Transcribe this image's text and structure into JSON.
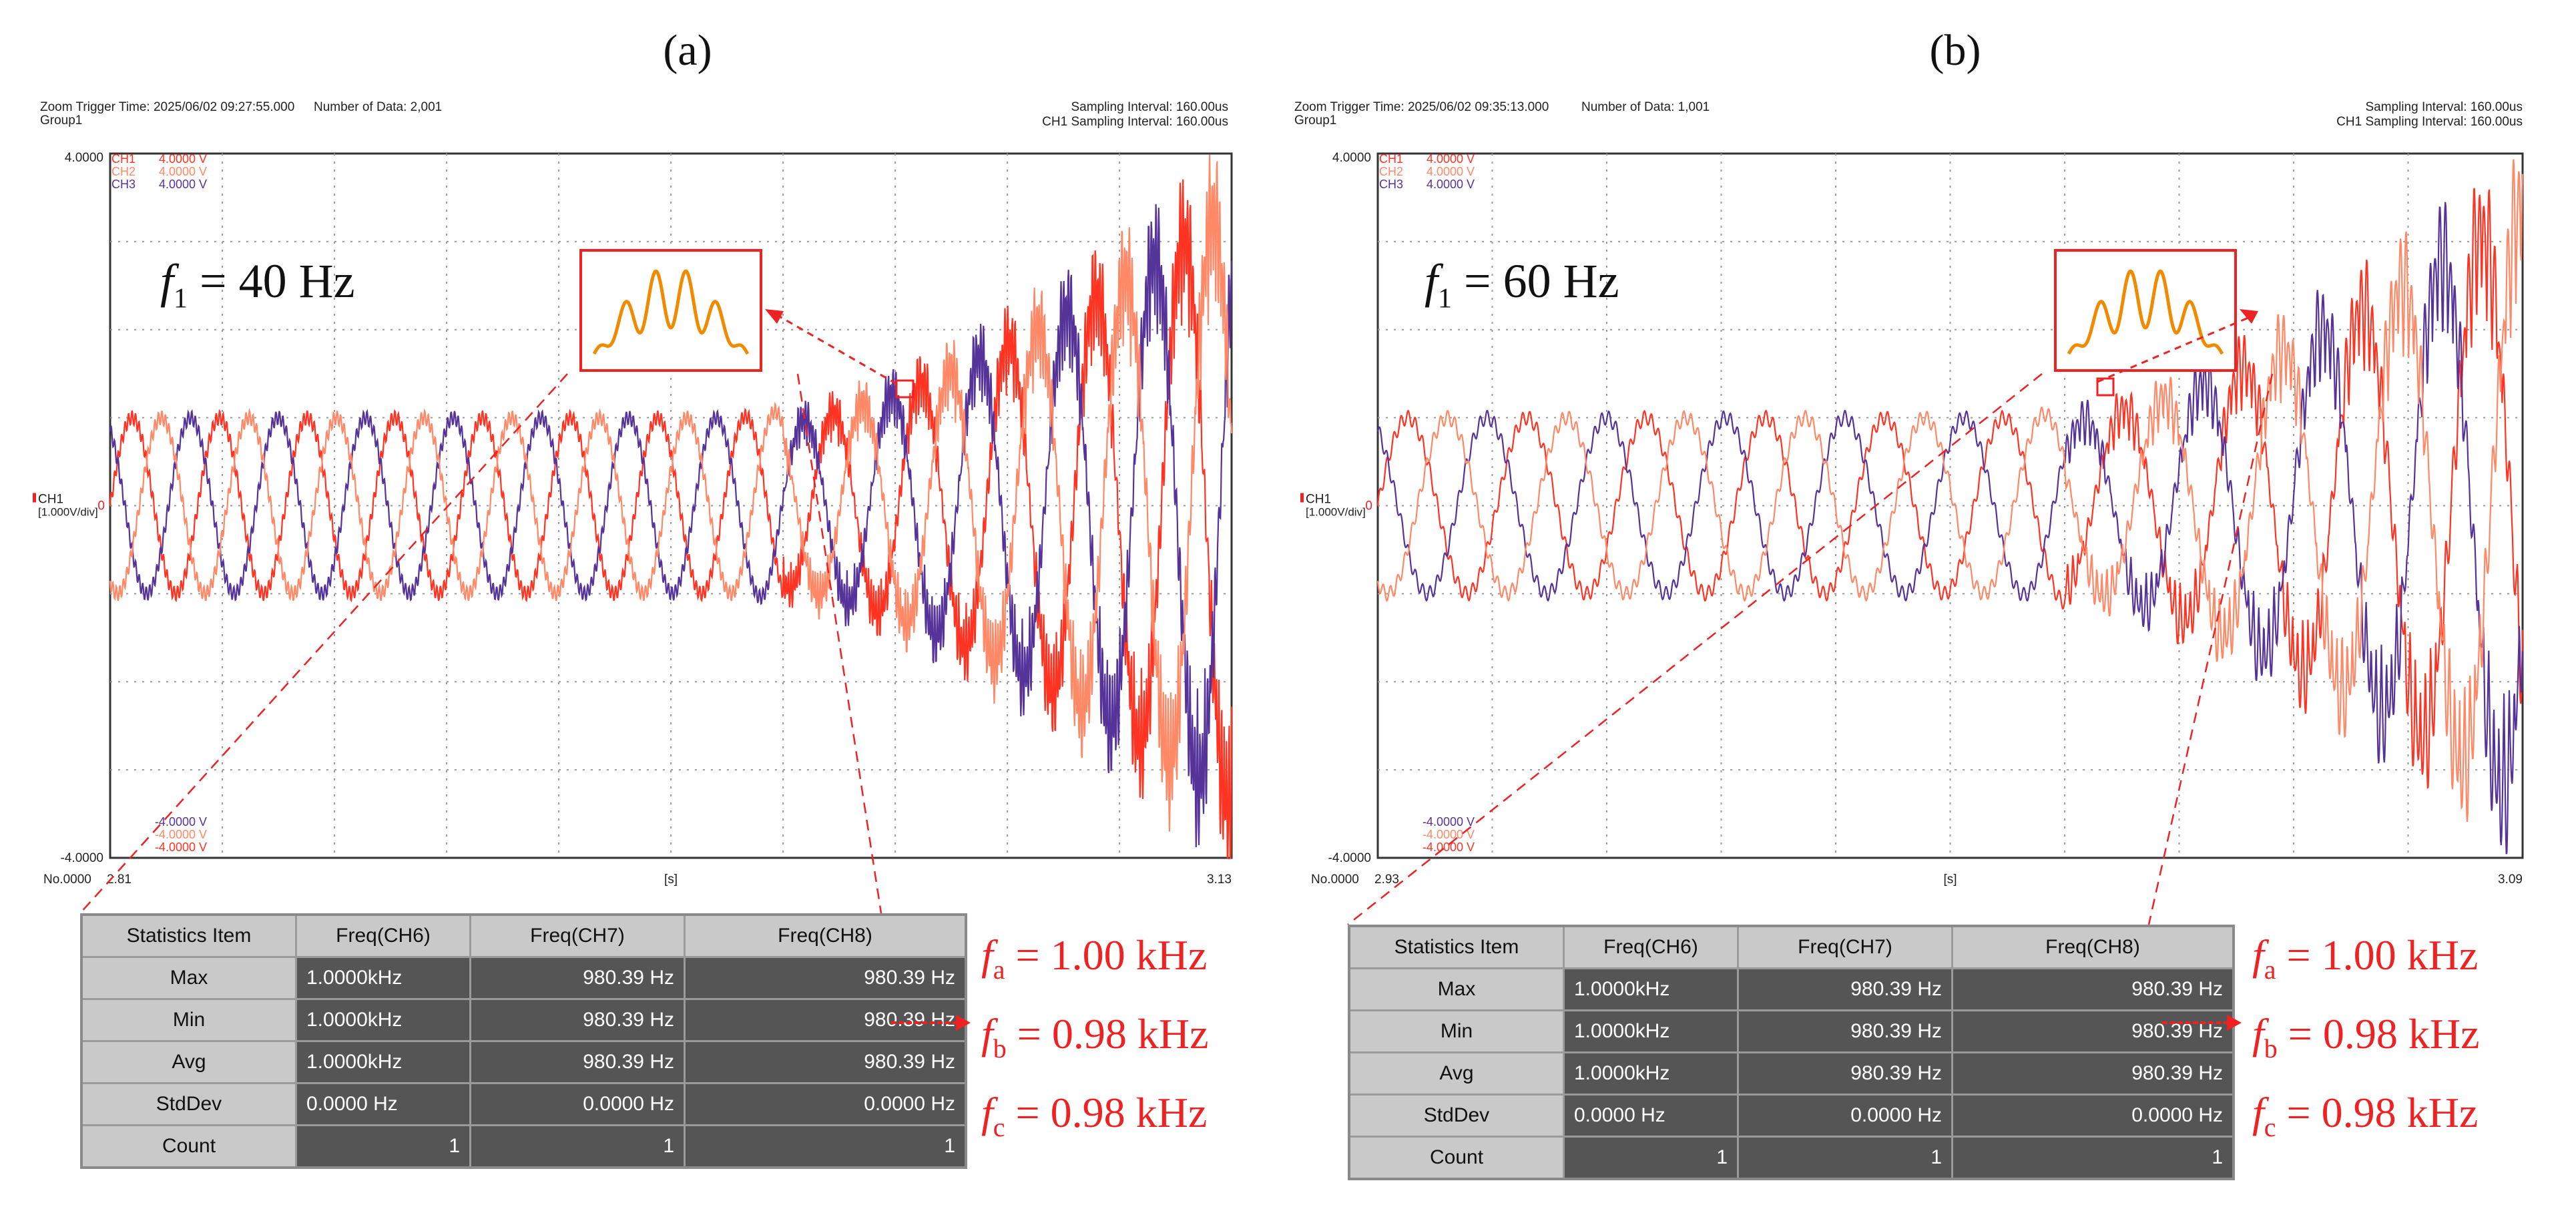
{
  "panels": [
    {
      "label": "(a)",
      "header": {
        "trigger": "Zoom Trigger Time: 2025/06/02 09:27:55.000",
        "group": "Group1",
        "number_of_data": "Number of Data: 2,001",
        "sampling_interval": "Sampling Interval:  160.00us",
        "ch1_sampling": "CH1 Sampling Interval:  160.00us"
      },
      "y_top_label": "4.0000",
      "y_bottom_label": "-4.0000",
      "y_zero_label": "0",
      "ch_axis_label": "CH1",
      "ch_axis_div": "[1.000V/div]",
      "x_start": "2.81",
      "x_end": "3.13",
      "x_unit": "[s]",
      "x_origin": "No.0000",
      "channels_top": [
        {
          "name": "CH1",
          "value": "4.0000 V"
        },
        {
          "name": "CH2",
          "value": "4.0000 V"
        },
        {
          "name": "CH3",
          "value": "4.0000 V"
        }
      ],
      "channels_bottom": [
        "-4.0000 V",
        "-4.0000 V",
        "-4.0000 V"
      ],
      "freq_annotation": {
        "symbol": "f",
        "sub": "1",
        "text": " = 40 Hz"
      },
      "stats": {
        "headers": [
          "Statistics Item",
          "Freq(CH6)",
          "Freq(CH7)",
          "Freq(CH8)"
        ],
        "rows": [
          {
            "label": "Max",
            "values": [
              "1.0000kHz",
              "980.39 Hz",
              "980.39 Hz"
            ]
          },
          {
            "label": "Min",
            "values": [
              "1.0000kHz",
              "980.39 Hz",
              "980.39 Hz"
            ]
          },
          {
            "label": "Avg",
            "values": [
              "1.0000kHz",
              "980.39 Hz",
              "980.39 Hz"
            ]
          },
          {
            "label": "StdDev",
            "values": [
              "0.0000 Hz",
              "0.0000 Hz",
              "0.0000 Hz"
            ]
          },
          {
            "label": "Count",
            "values": [
              "1",
              "1",
              "1"
            ]
          }
        ]
      },
      "results": [
        {
          "symbol": "f",
          "sub": "a",
          "text": " = 1.00 kHz"
        },
        {
          "symbol": "f",
          "sub": "b",
          "text": " = 0.98 kHz"
        },
        {
          "symbol": "f",
          "sub": "c",
          "text": " = 0.98 kHz"
        }
      ]
    },
    {
      "label": "(b)",
      "header": {
        "trigger": "Zoom Trigger Time: 2025/06/02 09:35:13.000",
        "group": "Group1",
        "number_of_data": "Number of Data: 1,001",
        "sampling_interval": "Sampling Interval:  160.00us",
        "ch1_sampling": "CH1 Sampling Interval:  160.00us"
      },
      "y_top_label": "4.0000",
      "y_bottom_label": "-4.0000",
      "y_zero_label": "0",
      "ch_axis_label": "CH1",
      "ch_axis_div": "[1.000V/div]",
      "x_start": "2.93",
      "x_end": "3.09",
      "x_unit": "[s]",
      "x_origin": "No.0000",
      "channels_top": [
        {
          "name": "CH1",
          "value": "4.0000 V"
        },
        {
          "name": "CH2",
          "value": "4.0000 V"
        },
        {
          "name": "CH3",
          "value": "4.0000 V"
        }
      ],
      "channels_bottom": [
        "-4.0000 V",
        "-4.0000 V",
        "-4.0000 V"
      ],
      "freq_annotation": {
        "symbol": "f",
        "sub": "1",
        "text": " = 60 Hz"
      },
      "stats": {
        "headers": [
          "Statistics Item",
          "Freq(CH6)",
          "Freq(CH7)",
          "Freq(CH8)"
        ],
        "rows": [
          {
            "label": "Max",
            "values": [
              "1.0000kHz",
              "980.39 Hz",
              "980.39 Hz"
            ]
          },
          {
            "label": "Min",
            "values": [
              "1.0000kHz",
              "980.39 Hz",
              "980.39 Hz"
            ]
          },
          {
            "label": "Avg",
            "values": [
              "1.0000kHz",
              "980.39 Hz",
              "980.39 Hz"
            ]
          },
          {
            "label": "StdDev",
            "values": [
              "0.0000 Hz",
              "0.0000 Hz",
              "0.0000 Hz"
            ]
          },
          {
            "label": "Count",
            "values": [
              "1",
              "1",
              "1"
            ]
          }
        ]
      },
      "results": [
        {
          "symbol": "f",
          "sub": "a",
          "text": " = 1.00 kHz"
        },
        {
          "symbol": "f",
          "sub": "b",
          "text": " = 0.98 kHz"
        },
        {
          "symbol": "f",
          "sub": "c",
          "text": " = 0.98 kHz"
        }
      ]
    }
  ],
  "colors": {
    "ch1": "#ff3322",
    "ch2": "#ff8866",
    "ch3": "#553399",
    "annotation": "#ee2222",
    "inset_wave": "#f08a00"
  },
  "chart_data": [
    {
      "type": "line",
      "title": "(a)",
      "xlabel": "[s]",
      "ylabel": "CH1 [1.000V/div]",
      "xlim": [
        2.81,
        3.13
      ],
      "ylim": [
        -4,
        4
      ],
      "fundamental_hz": 40,
      "series": [
        {
          "name": "CH1",
          "amplitude_start": 1.0,
          "amplitude_end": 4.0,
          "phase_deg": 0
        },
        {
          "name": "CH2",
          "amplitude_start": 1.0,
          "amplitude_end": 4.0,
          "phase_deg": -120
        },
        {
          "name": "CH3",
          "amplitude_start": 1.0,
          "amplitude_end": 4.0,
          "phase_deg": 120
        }
      ]
    },
    {
      "type": "line",
      "title": "(b)",
      "xlabel": "[s]",
      "ylabel": "CH1 [1.000V/div]",
      "xlim": [
        2.93,
        3.09
      ],
      "ylim": [
        -4,
        4
      ],
      "fundamental_hz": 60,
      "series": [
        {
          "name": "CH1",
          "amplitude_start": 1.0,
          "amplitude_end": 4.0,
          "phase_deg": 0
        },
        {
          "name": "CH2",
          "amplitude_start": 1.0,
          "amplitude_end": 4.0,
          "phase_deg": -120
        },
        {
          "name": "CH3",
          "amplitude_start": 1.0,
          "amplitude_end": 4.0,
          "phase_deg": 120
        }
      ]
    }
  ]
}
